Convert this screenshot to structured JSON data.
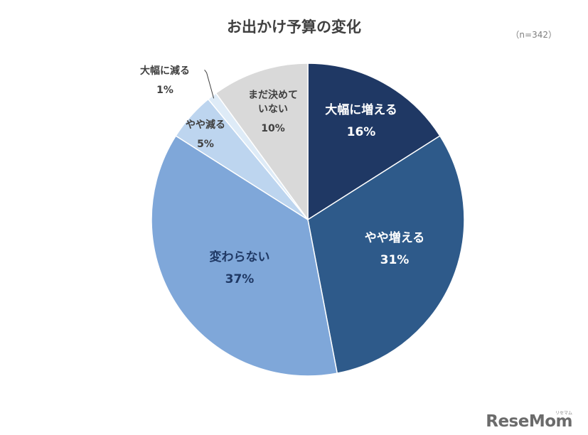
{
  "title": "お出かけ予算の変化",
  "sample_size": "（n=342）",
  "logo": {
    "text": "ReseMom",
    "kana": "リセマム"
  },
  "chart_data": {
    "type": "pie",
    "title": "お出かけ予算の変化",
    "start_angle_deg": 0,
    "direction": "clockwise",
    "slices": [
      {
        "label": "大幅に増える",
        "value": 16,
        "pct_label": "16%",
        "color": "#1f3864",
        "text_color": "#ffffff",
        "label_placement": "inside"
      },
      {
        "label": "やや増える",
        "value": 31,
        "pct_label": "31%",
        "color": "#2e5a8a",
        "text_color": "#ffffff",
        "label_placement": "inside"
      },
      {
        "label": "変わらない",
        "value": 37,
        "pct_label": "37%",
        "color": "#7fa7d9",
        "text_color": "#1f3864",
        "label_placement": "inside"
      },
      {
        "label": "やや減る",
        "value": 5,
        "pct_label": "5%",
        "color": "#bdd5ef",
        "text_color": "#404040",
        "label_placement": "inside"
      },
      {
        "label": "大幅に減る",
        "value": 1,
        "pct_label": "1%",
        "color": "#deebf7",
        "text_color": "#404040",
        "label_placement": "outside"
      },
      {
        "label": "まだ決めていない",
        "label_lines": [
          "まだ決めて",
          "いない"
        ],
        "value": 10,
        "pct_label": "10%",
        "color": "#d9d9d9",
        "text_color": "#404040",
        "label_placement": "inside"
      }
    ]
  }
}
